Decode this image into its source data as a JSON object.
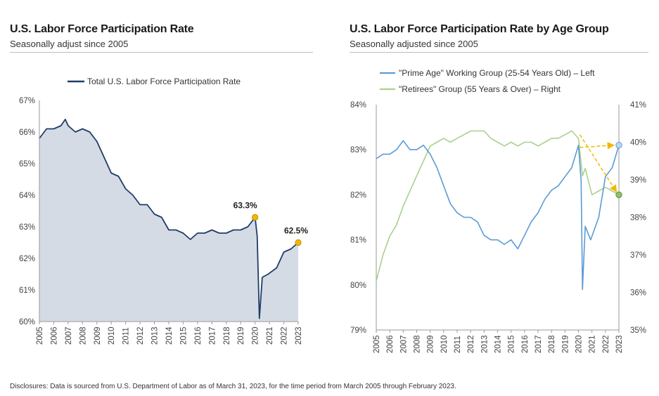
{
  "left": {
    "title": "U.S. Labor Force Participation Rate",
    "subtitle": "Seasonally adjust since 2005"
  },
  "right": {
    "title": "U.S. Labor Force Participation Rate by Age Group",
    "subtitle": "Seasonally adjusted since 2005"
  },
  "disclosure": "Disclosures: Data is sourced from U.S. Department of Labor as of March 31, 2023, for the time period from March 2005 through February 2023.",
  "colors": {
    "navy": "#1f3c68",
    "area": "#d5dbe5",
    "blue": "#5b9bd5",
    "green": "#a9d18e",
    "gold": "#f2b800"
  },
  "chart_data": [
    {
      "type": "area",
      "title": "U.S. Labor Force Participation Rate",
      "subtitle": "Seasonally adjust since 2005",
      "legend_position": "top",
      "series": [
        {
          "name": "Total U.S. Labor Force Participation Rate",
          "points": [
            [
              2005.0,
              65.8
            ],
            [
              2005.5,
              66.1
            ],
            [
              2006.0,
              66.1
            ],
            [
              2006.5,
              66.2
            ],
            [
              2006.8,
              66.4
            ],
            [
              2007.0,
              66.2
            ],
            [
              2007.5,
              66.0
            ],
            [
              2008.0,
              66.1
            ],
            [
              2008.5,
              66.0
            ],
            [
              2009.0,
              65.7
            ],
            [
              2009.5,
              65.2
            ],
            [
              2010.0,
              64.7
            ],
            [
              2010.5,
              64.6
            ],
            [
              2011.0,
              64.2
            ],
            [
              2011.5,
              64.0
            ],
            [
              2012.0,
              63.7
            ],
            [
              2012.5,
              63.7
            ],
            [
              2013.0,
              63.4
            ],
            [
              2013.5,
              63.3
            ],
            [
              2014.0,
              62.9
            ],
            [
              2014.5,
              62.9
            ],
            [
              2015.0,
              62.8
            ],
            [
              2015.5,
              62.6
            ],
            [
              2016.0,
              62.8
            ],
            [
              2016.5,
              62.8
            ],
            [
              2017.0,
              62.9
            ],
            [
              2017.5,
              62.8
            ],
            [
              2018.0,
              62.8
            ],
            [
              2018.5,
              62.9
            ],
            [
              2019.0,
              62.9
            ],
            [
              2019.5,
              63.0
            ],
            [
              2020.0,
              63.3
            ],
            [
              2020.15,
              62.7
            ],
            [
              2020.3,
              60.1
            ],
            [
              2020.5,
              61.4
            ],
            [
              2020.9,
              61.5
            ],
            [
              2021.5,
              61.7
            ],
            [
              2022.0,
              62.2
            ],
            [
              2022.5,
              62.3
            ],
            [
              2023.0,
              62.5
            ]
          ]
        }
      ],
      "annotations": [
        {
          "label": "63.3%",
          "x": 2020.0,
          "y": 63.3
        },
        {
          "label": "62.5%",
          "x": 2023.0,
          "y": 62.5
        }
      ],
      "xlim": [
        2005,
        2023
      ],
      "ylim": [
        60,
        67
      ],
      "x_ticks": [
        "2005",
        "2006",
        "2007",
        "2008",
        "2009",
        "2010",
        "2011",
        "2012",
        "2013",
        "2014",
        "2015",
        "2016",
        "2017",
        "2018",
        "2019",
        "2020",
        "2021",
        "2022",
        "2023"
      ],
      "y_ticks": [
        "60%",
        "61%",
        "62%",
        "63%",
        "64%",
        "65%",
        "66%",
        "67%"
      ]
    },
    {
      "type": "line",
      "title": "U.S. Labor Force Participation Rate by Age Group",
      "subtitle": "Seasonally adjusted since 2005",
      "legend_position": "top",
      "series": [
        {
          "name": "\"Prime Age\" Working Group (25-54 Years Old) – Left",
          "axis": "left",
          "points": [
            [
              2005.0,
              82.8
            ],
            [
              2005.5,
              82.9
            ],
            [
              2006.0,
              82.9
            ],
            [
              2006.5,
              83.0
            ],
            [
              2007.0,
              83.2
            ],
            [
              2007.5,
              83.0
            ],
            [
              2008.0,
              83.0
            ],
            [
              2008.5,
              83.1
            ],
            [
              2009.0,
              82.9
            ],
            [
              2009.5,
              82.6
            ],
            [
              2010.0,
              82.2
            ],
            [
              2010.5,
              81.8
            ],
            [
              2011.0,
              81.6
            ],
            [
              2011.5,
              81.5
            ],
            [
              2012.0,
              81.5
            ],
            [
              2012.5,
              81.4
            ],
            [
              2013.0,
              81.1
            ],
            [
              2013.5,
              81.0
            ],
            [
              2014.0,
              81.0
            ],
            [
              2014.5,
              80.9
            ],
            [
              2015.0,
              81.0
            ],
            [
              2015.5,
              80.8
            ],
            [
              2016.0,
              81.1
            ],
            [
              2016.5,
              81.4
            ],
            [
              2017.0,
              81.6
            ],
            [
              2017.5,
              81.9
            ],
            [
              2018.0,
              82.1
            ],
            [
              2018.5,
              82.2
            ],
            [
              2019.0,
              82.4
            ],
            [
              2019.5,
              82.6
            ],
            [
              2020.0,
              83.1
            ],
            [
              2020.2,
              82.3
            ],
            [
              2020.3,
              79.9
            ],
            [
              2020.5,
              81.3
            ],
            [
              2020.9,
              81.0
            ],
            [
              2021.5,
              81.5
            ],
            [
              2022.0,
              82.4
            ],
            [
              2022.5,
              82.6
            ],
            [
              2023.0,
              83.1
            ]
          ]
        },
        {
          "name": "\"Retirees\" Group (55 Years & Over) – Right",
          "axis": "right",
          "points": [
            [
              2005.0,
              36.3
            ],
            [
              2005.5,
              37.0
            ],
            [
              2006.0,
              37.5
            ],
            [
              2006.5,
              37.8
            ],
            [
              2007.0,
              38.3
            ],
            [
              2007.5,
              38.7
            ],
            [
              2008.0,
              39.1
            ],
            [
              2008.5,
              39.5
            ],
            [
              2009.0,
              39.9
            ],
            [
              2009.5,
              40.0
            ],
            [
              2010.0,
              40.1
            ],
            [
              2010.5,
              40.0
            ],
            [
              2011.0,
              40.1
            ],
            [
              2011.5,
              40.2
            ],
            [
              2012.0,
              40.3
            ],
            [
              2012.5,
              40.3
            ],
            [
              2013.0,
              40.3
            ],
            [
              2013.5,
              40.1
            ],
            [
              2014.0,
              40.0
            ],
            [
              2014.5,
              39.9
            ],
            [
              2015.0,
              40.0
            ],
            [
              2015.5,
              39.9
            ],
            [
              2016.0,
              40.0
            ],
            [
              2016.5,
              40.0
            ],
            [
              2017.0,
              39.9
            ],
            [
              2017.5,
              40.0
            ],
            [
              2018.0,
              40.1
            ],
            [
              2018.5,
              40.1
            ],
            [
              2019.0,
              40.2
            ],
            [
              2019.5,
              40.3
            ],
            [
              2020.0,
              40.1
            ],
            [
              2020.3,
              39.1
            ],
            [
              2020.5,
              39.3
            ],
            [
              2021.0,
              38.6
            ],
            [
              2021.5,
              38.7
            ],
            [
              2022.0,
              38.8
            ],
            [
              2022.5,
              38.7
            ],
            [
              2023.0,
              38.6
            ]
          ]
        }
      ],
      "annotations": [
        {
          "series": "\"Prime Age\" Working Group (25-54 Years Old) – Left",
          "x": 2023.0,
          "y": 83.1
        },
        {
          "series": "\"Retirees\" Group (55 Years & Over) – Right",
          "x": 2023.0,
          "y": 38.6
        }
      ],
      "xlim": [
        2005,
        2023
      ],
      "ylim_left": [
        79,
        84
      ],
      "ylim_right": [
        35,
        41
      ],
      "x_ticks": [
        "2005",
        "2006",
        "2007",
        "2008",
        "2009",
        "2010",
        "2011",
        "2012",
        "2013",
        "2014",
        "2015",
        "2016",
        "2017",
        "2018",
        "2019",
        "2020",
        "2021",
        "2022",
        "2023"
      ],
      "y_ticks_left": [
        "79%",
        "80%",
        "81%",
        "82%",
        "83%",
        "84%"
      ],
      "y_ticks_right": [
        "35%",
        "36%",
        "37%",
        "38%",
        "39%",
        "40%",
        "41%"
      ]
    }
  ]
}
